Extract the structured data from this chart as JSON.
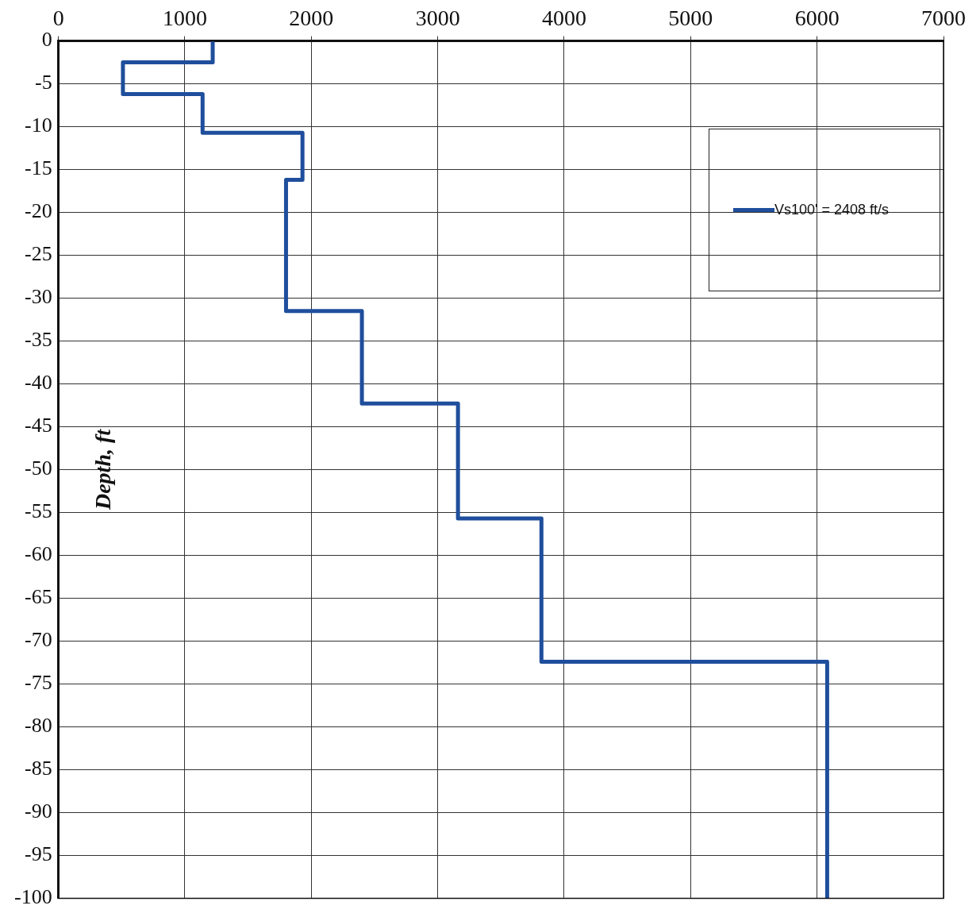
{
  "chart_data": {
    "type": "line",
    "ylabel": "Depth, ft",
    "x": [
      1220,
      1220,
      510,
      510,
      1140,
      1140,
      1930,
      1930,
      1800,
      1800,
      2400,
      2400,
      3160,
      3160,
      3820,
      3820,
      6080,
      6080
    ],
    "series": [
      {
        "name": "Vs100' = 2408 ft/s",
        "color": "#1f4e9c",
        "values": [
          0,
          -2.5,
          -2.5,
          -6.2,
          -6.2,
          -10.7,
          -10.7,
          -16.2,
          -16.2,
          -31.5,
          -31.5,
          -42.3,
          -42.3,
          -55.7,
          -55.7,
          -72.4,
          -72.4,
          -100
        ]
      }
    ],
    "xlim": [
      0,
      7000
    ],
    "xticks": [
      0,
      1000,
      2000,
      3000,
      4000,
      5000,
      6000,
      7000
    ],
    "ylim": [
      -100,
      0
    ],
    "yticks": [
      0,
      -5,
      -10,
      -15,
      -20,
      -25,
      -30,
      -35,
      -40,
      -45,
      -50,
      -55,
      -60,
      -65,
      -70,
      -75,
      -80,
      -85,
      -90,
      -95,
      -100
    ],
    "grid": true,
    "legend": "top right",
    "marker": "none",
    "line_style": "solid"
  }
}
